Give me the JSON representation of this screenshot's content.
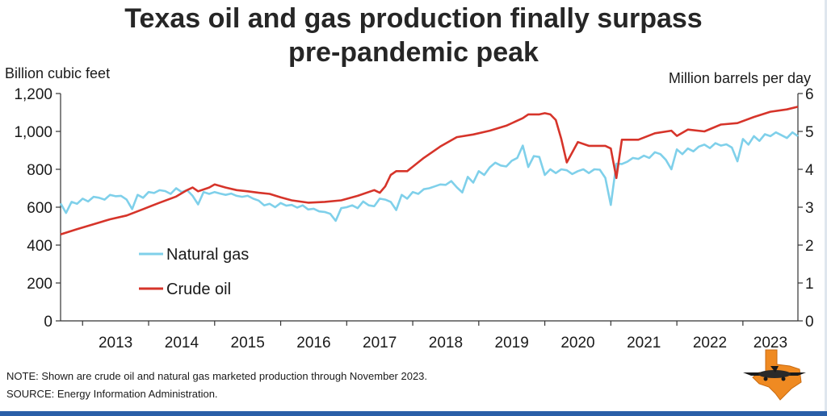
{
  "title_line1": "Texas oil and gas production finally surpass",
  "title_line2": "pre-pandemic peak",
  "note": "NOTE: Shown are crude oil and natural gas marketed production through November 2023.",
  "source": "SOURCE: Energy Information Administration.",
  "colors": {
    "gas": "#7fd0ea",
    "oil": "#d6342a",
    "axis": "#333333"
  },
  "logo_icon": "texas-airplane-logo-icon",
  "chart_data": {
    "type": "line",
    "title": "Texas oil and gas production finally surpass pre-pandemic peak",
    "ylabel_left": "Billion cubic feet",
    "ylabel_right": "Million barrels per day",
    "ylim_left": [
      0,
      1200
    ],
    "ylim_right": [
      0,
      6
    ],
    "yticks_left": [
      "0",
      "200",
      "400",
      "600",
      "800",
      "1,000",
      "1,200"
    ],
    "yticks_right": [
      "0",
      "1",
      "2",
      "3",
      "4",
      "5",
      "6"
    ],
    "xlim": [
      "2012-09",
      "2023-11"
    ],
    "years": [
      "2013",
      "2014",
      "2015",
      "2016",
      "2017",
      "2018",
      "2019",
      "2020",
      "2021",
      "2022",
      "2023"
    ],
    "legend_position": "lower-left",
    "grid": false,
    "series": [
      {
        "name": "Natural gas",
        "axis": "left",
        "color": "#7fd0ea",
        "points": [
          [
            "2012-09",
            620
          ],
          [
            "2012-10",
            570
          ],
          [
            "2012-11",
            628
          ],
          [
            "2012-12",
            618
          ],
          [
            "2013-01",
            645
          ],
          [
            "2013-02",
            630
          ],
          [
            "2013-03",
            655
          ],
          [
            "2013-04",
            650
          ],
          [
            "2013-05",
            640
          ],
          [
            "2013-06",
            665
          ],
          [
            "2013-07",
            658
          ],
          [
            "2013-08",
            660
          ],
          [
            "2013-09",
            640
          ],
          [
            "2013-10",
            590
          ],
          [
            "2013-11",
            665
          ],
          [
            "2013-12",
            650
          ],
          [
            "2014-01",
            680
          ],
          [
            "2014-02",
            675
          ],
          [
            "2014-03",
            690
          ],
          [
            "2014-04",
            685
          ],
          [
            "2014-05",
            670
          ],
          [
            "2014-06",
            700
          ],
          [
            "2014-07",
            680
          ],
          [
            "2014-08",
            690
          ],
          [
            "2014-09",
            660
          ],
          [
            "2014-10",
            615
          ],
          [
            "2014-11",
            680
          ],
          [
            "2014-12",
            670
          ],
          [
            "2015-01",
            680
          ],
          [
            "2015-02",
            672
          ],
          [
            "2015-03",
            665
          ],
          [
            "2015-04",
            672
          ],
          [
            "2015-05",
            660
          ],
          [
            "2015-06",
            655
          ],
          [
            "2015-07",
            660
          ],
          [
            "2015-08",
            645
          ],
          [
            "2015-09",
            635
          ],
          [
            "2015-10",
            610
          ],
          [
            "2015-11",
            618
          ],
          [
            "2015-12",
            600
          ],
          [
            "2016-01",
            622
          ],
          [
            "2016-02",
            608
          ],
          [
            "2016-03",
            612
          ],
          [
            "2016-04",
            598
          ],
          [
            "2016-05",
            610
          ],
          [
            "2016-06",
            588
          ],
          [
            "2016-07",
            592
          ],
          [
            "2016-08",
            578
          ],
          [
            "2016-09",
            575
          ],
          [
            "2016-10",
            565
          ],
          [
            "2016-11",
            528
          ],
          [
            "2016-12",
            595
          ],
          [
            "2017-01",
            600
          ],
          [
            "2017-02",
            610
          ],
          [
            "2017-03",
            595
          ],
          [
            "2017-04",
            630
          ],
          [
            "2017-05",
            610
          ],
          [
            "2017-06",
            605
          ],
          [
            "2017-07",
            645
          ],
          [
            "2017-08",
            640
          ],
          [
            "2017-09",
            628
          ],
          [
            "2017-10",
            585
          ],
          [
            "2017-11",
            665
          ],
          [
            "2017-12",
            645
          ],
          [
            "2018-01",
            680
          ],
          [
            "2018-02",
            670
          ],
          [
            "2018-03",
            695
          ],
          [
            "2018-04",
            700
          ],
          [
            "2018-05",
            710
          ],
          [
            "2018-06",
            720
          ],
          [
            "2018-07",
            718
          ],
          [
            "2018-08",
            738
          ],
          [
            "2018-09",
            705
          ],
          [
            "2018-10",
            678
          ],
          [
            "2018-11",
            760
          ],
          [
            "2018-12",
            730
          ],
          [
            "2019-01",
            790
          ],
          [
            "2019-02",
            770
          ],
          [
            "2019-03",
            810
          ],
          [
            "2019-04",
            835
          ],
          [
            "2019-05",
            820
          ],
          [
            "2019-06",
            815
          ],
          [
            "2019-07",
            845
          ],
          [
            "2019-08",
            860
          ],
          [
            "2019-09",
            925
          ],
          [
            "2019-10",
            812
          ],
          [
            "2019-11",
            870
          ],
          [
            "2019-12",
            865
          ],
          [
            "2020-01",
            770
          ],
          [
            "2020-02",
            800
          ],
          [
            "2020-03",
            780
          ],
          [
            "2020-04",
            800
          ],
          [
            "2020-05",
            795
          ],
          [
            "2020-06",
            775
          ],
          [
            "2020-07",
            790
          ],
          [
            "2020-08",
            800
          ],
          [
            "2020-09",
            780
          ],
          [
            "2020-10",
            800
          ],
          [
            "2020-11",
            798
          ],
          [
            "2020-12",
            755
          ],
          [
            "2021-01",
            612
          ],
          [
            "2021-02",
            830
          ],
          [
            "2021-03",
            828
          ],
          [
            "2021-04",
            840
          ],
          [
            "2021-05",
            860
          ],
          [
            "2021-06",
            855
          ],
          [
            "2021-07",
            872
          ],
          [
            "2021-08",
            860
          ],
          [
            "2021-09",
            890
          ],
          [
            "2021-10",
            880
          ],
          [
            "2021-11",
            850
          ],
          [
            "2021-12",
            800
          ],
          [
            "2022-01",
            905
          ],
          [
            "2022-02",
            880
          ],
          [
            "2022-03",
            910
          ],
          [
            "2022-04",
            895
          ],
          [
            "2022-05",
            920
          ],
          [
            "2022-06",
            930
          ],
          [
            "2022-07",
            912
          ],
          [
            "2022-08",
            938
          ],
          [
            "2022-09",
            925
          ],
          [
            "2022-10",
            932
          ],
          [
            "2022-11",
            915
          ],
          [
            "2022-12",
            842
          ],
          [
            "2023-01",
            960
          ],
          [
            "2023-02",
            930
          ],
          [
            "2023-03",
            975
          ],
          [
            "2023-04",
            950
          ],
          [
            "2023-05",
            985
          ],
          [
            "2023-06",
            975
          ],
          [
            "2023-07",
            995
          ],
          [
            "2023-08",
            980
          ],
          [
            "2023-09",
            965
          ],
          [
            "2023-10",
            995
          ],
          [
            "2023-11",
            975
          ]
        ]
      },
      {
        "name": "Crude oil",
        "axis": "right",
        "color": "#d6342a",
        "points": [
          [
            "2012-09",
            2.28
          ],
          [
            "2012-12",
            2.42
          ],
          [
            "2013-03",
            2.55
          ],
          [
            "2013-06",
            2.68
          ],
          [
            "2013-09",
            2.78
          ],
          [
            "2013-12",
            2.95
          ],
          [
            "2014-03",
            3.12
          ],
          [
            "2014-06",
            3.28
          ],
          [
            "2014-08",
            3.45
          ],
          [
            "2014-09",
            3.52
          ],
          [
            "2014-10",
            3.42
          ],
          [
            "2014-12",
            3.52
          ],
          [
            "2015-01",
            3.6
          ],
          [
            "2015-03",
            3.52
          ],
          [
            "2015-05",
            3.45
          ],
          [
            "2015-07",
            3.42
          ],
          [
            "2015-09",
            3.38
          ],
          [
            "2015-11",
            3.35
          ],
          [
            "2016-01",
            3.26
          ],
          [
            "2016-03",
            3.18
          ],
          [
            "2016-06",
            3.12
          ],
          [
            "2016-09",
            3.14
          ],
          [
            "2016-12",
            3.18
          ],
          [
            "2017-03",
            3.3
          ],
          [
            "2017-06",
            3.45
          ],
          [
            "2017-07",
            3.38
          ],
          [
            "2017-08",
            3.55
          ],
          [
            "2017-09",
            3.85
          ],
          [
            "2017-10",
            3.95
          ],
          [
            "2017-12",
            3.95
          ],
          [
            "2018-03",
            4.3
          ],
          [
            "2018-06",
            4.6
          ],
          [
            "2018-09",
            4.85
          ],
          [
            "2018-12",
            4.92
          ],
          [
            "2019-03",
            5.02
          ],
          [
            "2019-06",
            5.15
          ],
          [
            "2019-09",
            5.35
          ],
          [
            "2019-10",
            5.45
          ],
          [
            "2019-12",
            5.45
          ],
          [
            "2020-01",
            5.48
          ],
          [
            "2020-02",
            5.45
          ],
          [
            "2020-03",
            5.3
          ],
          [
            "2020-04",
            4.8
          ],
          [
            "2020-05",
            4.18
          ],
          [
            "2020-07",
            4.72
          ],
          [
            "2020-09",
            4.62
          ],
          [
            "2020-12",
            4.62
          ],
          [
            "2021-01",
            4.55
          ],
          [
            "2021-02",
            3.77
          ],
          [
            "2021-03",
            4.78
          ],
          [
            "2021-06",
            4.78
          ],
          [
            "2021-09",
            4.95
          ],
          [
            "2021-12",
            5.02
          ],
          [
            "2022-01",
            4.88
          ],
          [
            "2022-03",
            5.05
          ],
          [
            "2022-06",
            5.0
          ],
          [
            "2022-09",
            5.18
          ],
          [
            "2022-12",
            5.22
          ],
          [
            "2023-03",
            5.38
          ],
          [
            "2023-06",
            5.52
          ],
          [
            "2023-09",
            5.58
          ],
          [
            "2023-11",
            5.65
          ]
        ]
      }
    ]
  }
}
